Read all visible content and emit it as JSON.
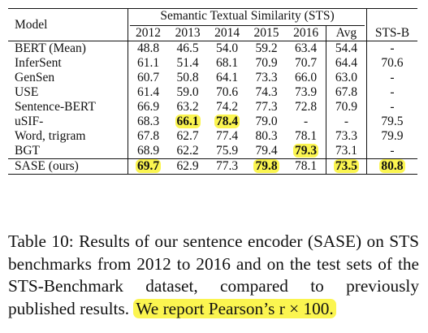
{
  "header": {
    "model": "Model",
    "sts_group": "Semantic Textual Similarity (STS)",
    "years": [
      "2012",
      "2013",
      "2014",
      "2015",
      "2016"
    ],
    "avg": "Avg",
    "stsb": "STS-B"
  },
  "rows": [
    {
      "model": "BERT (Mean)",
      "v": [
        "48.8",
        "46.5",
        "54.0",
        "59.2",
        "63.4"
      ],
      "avg": "54.4",
      "stsb": "-"
    },
    {
      "model": "InferSent",
      "v": [
        "61.1",
        "51.4",
        "68.1",
        "70.9",
        "70.7"
      ],
      "avg": "64.4",
      "stsb": "70.6"
    },
    {
      "model": "GenSen",
      "v": [
        "60.7",
        "50.8",
        "64.1",
        "73.3",
        "66.0"
      ],
      "avg": "63.0",
      "stsb": "-"
    },
    {
      "model": "USE",
      "v": [
        "61.4",
        "59.0",
        "70.6",
        "74.3",
        "73.9"
      ],
      "avg": "67.8",
      "stsb": "-"
    },
    {
      "model": "Sentence-BERT",
      "v": [
        "66.9",
        "63.2",
        "74.2",
        "77.3",
        "72.8"
      ],
      "avg": "70.9",
      "stsb": "-"
    },
    {
      "model": "uSIF-",
      "v": [
        "68.3",
        "66.1",
        "78.4",
        "79.0",
        "-"
      ],
      "avg": "-",
      "stsb": "79.5"
    },
    {
      "model": "Word, trigram",
      "v": [
        "67.8",
        "62.7",
        "77.4",
        "80.3",
        "78.1"
      ],
      "avg": "73.3",
      "stsb": "79.9"
    },
    {
      "model": "BGT",
      "v": [
        "68.9",
        "62.2",
        "75.9",
        "79.4",
        "79.3"
      ],
      "avg": "73.1",
      "stsb": "-"
    }
  ],
  "sase": {
    "model": "SASE (ours)",
    "v": [
      "69.7",
      "62.9",
      "77.3",
      "79.8",
      "78.1"
    ],
    "avg": "73.5",
    "stsb": "80.8"
  },
  "caption": {
    "main": "Table 10: Results of our sentence encoder (SASE) on STS benchmarks from 2012 to 2016 and on the test sets of the STS-Benchmark dataset, compared to previously published results.",
    "highlight": "We report Pearson’s r × 100."
  },
  "highlight_color": "#fbf550"
}
